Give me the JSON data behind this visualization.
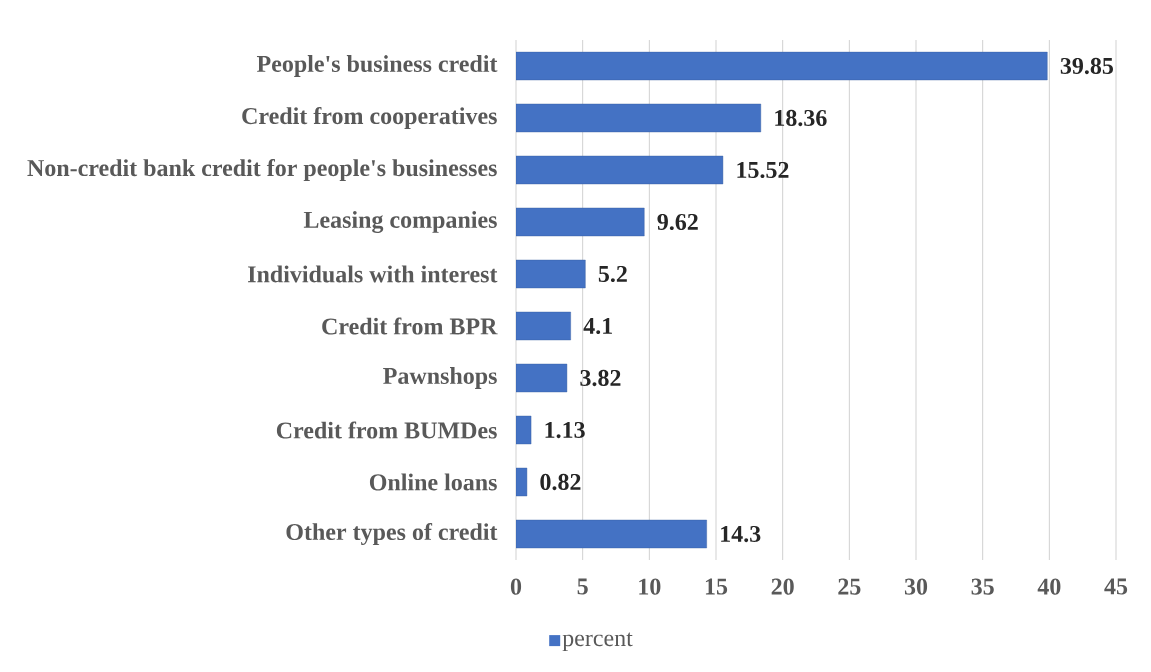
{
  "chart_data": {
    "type": "bar",
    "orientation": "horizontal",
    "categories": [
      "People's business credit",
      "Credit from cooperatives",
      "Non-credit bank credit for people's businesses",
      "Leasing companies",
      "Individuals with interest",
      "Credit from BPR",
      "Pawnshops",
      "Credit from BUMDes",
      "Online loans",
      "Other types of credit"
    ],
    "series": [
      {
        "name": "percent",
        "color": "#4472c4",
        "values": [
          39.85,
          18.36,
          15.52,
          9.62,
          5.2,
          4.1,
          3.82,
          1.13,
          0.82,
          14.3
        ]
      }
    ],
    "xlim": [
      0,
      45
    ],
    "xticks": [
      0,
      5,
      10,
      15,
      20,
      25,
      30,
      35,
      40,
      45
    ],
    "grid": "x",
    "legend": "bottom",
    "data_labels": true
  }
}
